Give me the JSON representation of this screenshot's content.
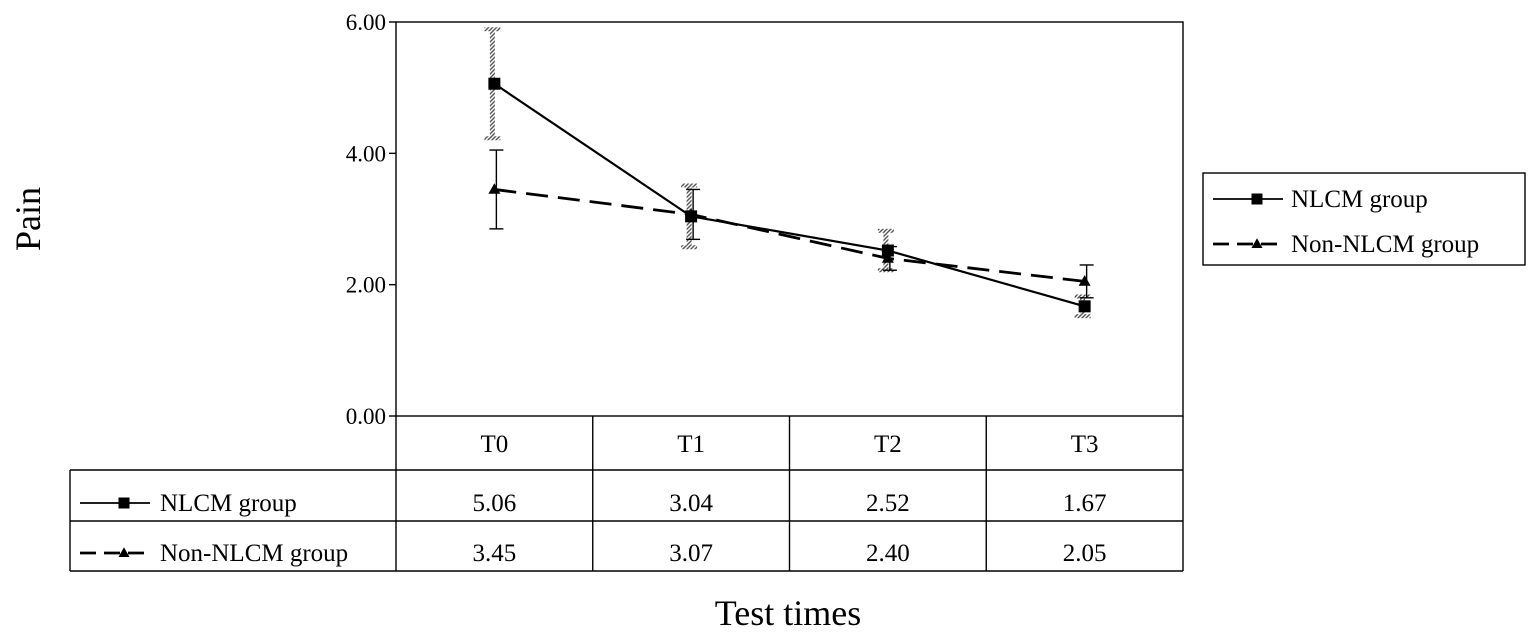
{
  "chart_data": {
    "type": "line",
    "categories": [
      "T0",
      "T1",
      "T2",
      "T3"
    ],
    "series": [
      {
        "name": "NLCM group",
        "values": [
          5.06,
          3.04,
          2.52,
          1.67
        ],
        "value_labels": [
          "5.06",
          "3.04",
          "2.52",
          "1.67"
        ],
        "error": [
          0.83,
          0.47,
          0.3,
          0.15
        ],
        "marker": "square",
        "line_style": "solid",
        "color": "#000000"
      },
      {
        "name": "Non-NLCM group",
        "values": [
          3.45,
          3.07,
          2.4,
          2.05
        ],
        "value_labels": [
          "3.45",
          "3.07",
          "2.40",
          "2.05"
        ],
        "error": [
          0.6,
          0.38,
          0.18,
          0.25
        ],
        "marker": "triangle",
        "line_style": "dashed",
        "color": "#000000"
      }
    ],
    "ylim": [
      0,
      6
    ],
    "yticks": [
      0,
      2,
      4,
      6
    ],
    "ytick_labels": [
      "0.00",
      "2.00",
      "4.00",
      "6.00"
    ],
    "xlabel": "Test times",
    "ylabel": "Pain",
    "grid": false,
    "legend": "right",
    "data_table": true
  }
}
